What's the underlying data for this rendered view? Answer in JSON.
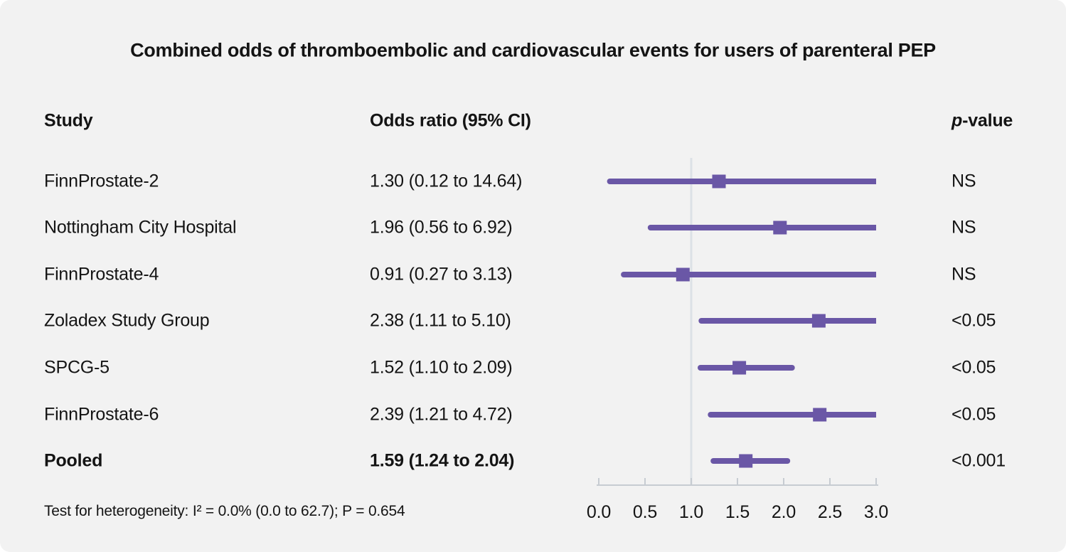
{
  "title": "Combined odds of thromboembolic and cardiovascular events for users of parenteral PEP",
  "columns": {
    "study": "Study",
    "odds_ratio": "Odds ratio (95% CI)",
    "p_value_prefix": "p",
    "p_value_suffix": "-value"
  },
  "footer": {
    "heterogeneity": "Test for heterogeneity: I² = 0.0% (0.0 to 62.7); P = 0.654"
  },
  "colors": {
    "marker_purple": "#6a57a6",
    "reference_line": "#dce1e6",
    "axis": "#c7ccd2",
    "background": "#f2f2f2",
    "text": "#141414"
  },
  "chart_data": {
    "type": "forest",
    "title": "Combined odds of thromboembolic and cardiovascular events for users of parenteral PEP",
    "xlabel": "",
    "ylabel": "",
    "xlim": [
      0,
      3
    ],
    "x_ticks": [
      "0.0",
      "0.5",
      "1.0",
      "1.5",
      "2.0",
      "2.5",
      "3.0"
    ],
    "x_tick_values": [
      0,
      0.5,
      1,
      1.5,
      2,
      2.5,
      3
    ],
    "reference_line": 1.0,
    "grid": "off",
    "studies": [
      {
        "label": "FinnProstate-2",
        "or": 1.3,
        "ci_low": 0.12,
        "ci_high": 14.64,
        "or_text": "1.30 (0.12 to 14.64)",
        "p_value": "NS",
        "bold": false
      },
      {
        "label": "Nottingham City Hospital",
        "or": 1.96,
        "ci_low": 0.56,
        "ci_high": 6.92,
        "or_text": "1.96 (0.56 to 6.92)",
        "p_value": "NS",
        "bold": false
      },
      {
        "label": "FinnProstate-4",
        "or": 0.91,
        "ci_low": 0.27,
        "ci_high": 3.13,
        "or_text": "0.91 (0.27 to 3.13)",
        "p_value": "NS",
        "bold": false
      },
      {
        "label": "Zoladex Study Group",
        "or": 2.38,
        "ci_low": 1.11,
        "ci_high": 5.1,
        "or_text": "2.38 (1.11 to 5.10)",
        "p_value": "<0.05",
        "bold": false
      },
      {
        "label": "SPCG-5",
        "or": 1.52,
        "ci_low": 1.1,
        "ci_high": 2.09,
        "or_text": "1.52 (1.10 to 2.09)",
        "p_value": "<0.05",
        "bold": false
      },
      {
        "label": "FinnProstate-6",
        "or": 2.39,
        "ci_low": 1.21,
        "ci_high": 4.72,
        "or_text": "2.39 (1.21 to 4.72)",
        "p_value": "<0.05",
        "bold": false
      },
      {
        "label": "Pooled",
        "or": 1.59,
        "ci_low": 1.24,
        "ci_high": 2.04,
        "or_text": "1.59 (1.24 to 2.04)",
        "p_value": "<0.001",
        "bold": true
      }
    ]
  }
}
